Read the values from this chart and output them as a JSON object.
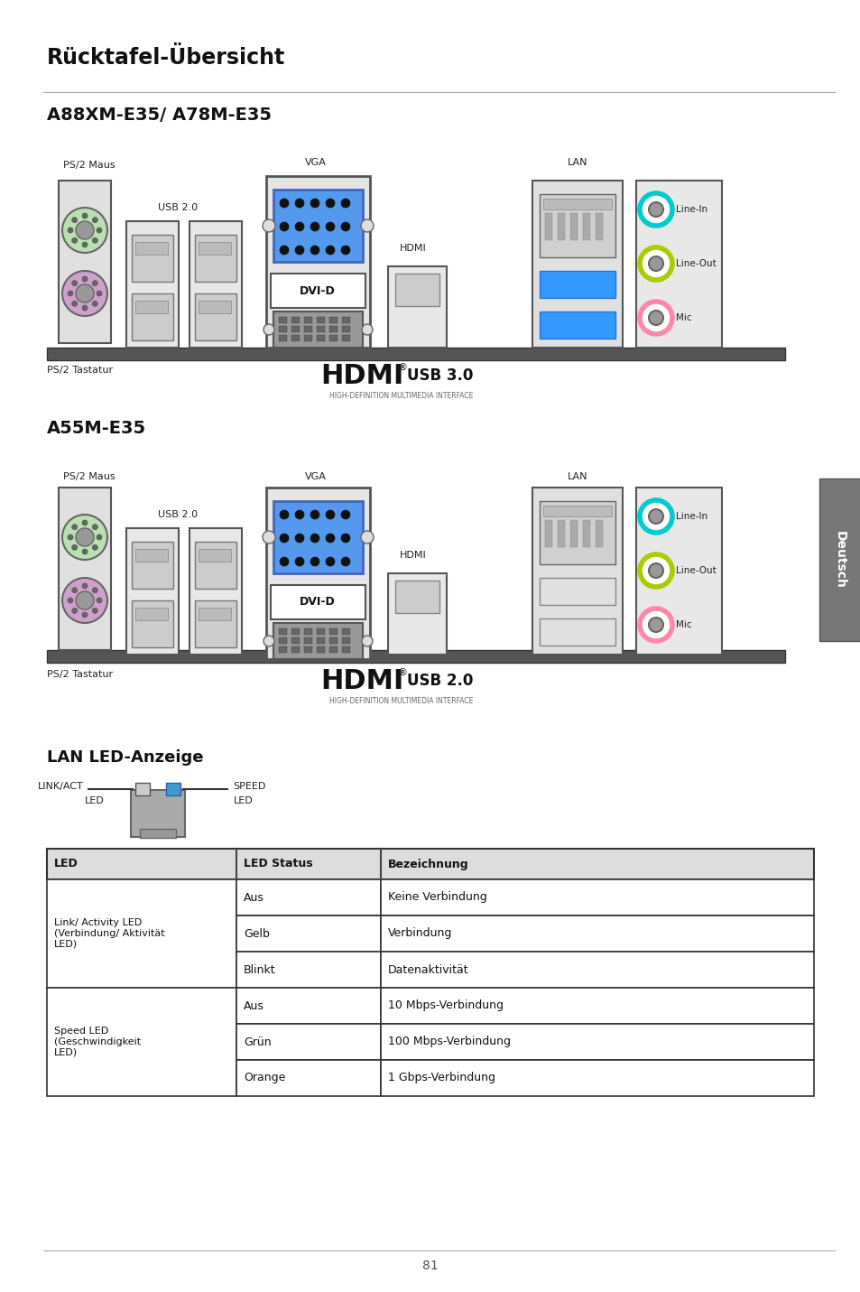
{
  "title": "Rücktafel-Übersicht",
  "bg_color": "#ffffff",
  "section1_title": "A88XM-E35/ A78M-E35",
  "section2_title": "A55M-E35",
  "lan_section_title": "LAN LED-Anzeige",
  "page_number": "81",
  "tab_label": "Deutsch",
  "table_headers": [
    "LED",
    "LED Status",
    "Bezeichnung"
  ],
  "link_act_label": "LINK/ACT",
  "led_label": "LED",
  "speed_label": "SPEED",
  "ps2_maus": "PS/2 Maus",
  "usb20": "USB 2.0",
  "vga": "VGA",
  "lan": "LAN",
  "dvi_d": "DVI-D",
  "hdmi": "HDMI",
  "line_in": "Line-In",
  "line_out": "Line-Out",
  "mic": "Mic",
  "ps2_tastatur": "PS/2 Tastatur",
  "usb30": "USB 3.0",
  "usb20_2": "USB 2.0",
  "hdmi_sub": "HIGH-DEFINITION MULTIMEDIA INTERFACE",
  "table_col1_labels": [
    "Link/ Activity LED\n(Verbindung/ Aktivität\nLED)",
    "Speed LED\n(Geschwindigkeit\nLED)"
  ],
  "table_col2": [
    "Aus",
    "Gelb",
    "Blinkt",
    "Aus",
    "Grün",
    "Orange"
  ],
  "table_col3": [
    "Keine Verbindung",
    "Verbindung",
    "Datenaktivität",
    "10 Mbps-Verbindung",
    "100 Mbps-Verbindung",
    "1 Gbps-Verbindung"
  ]
}
